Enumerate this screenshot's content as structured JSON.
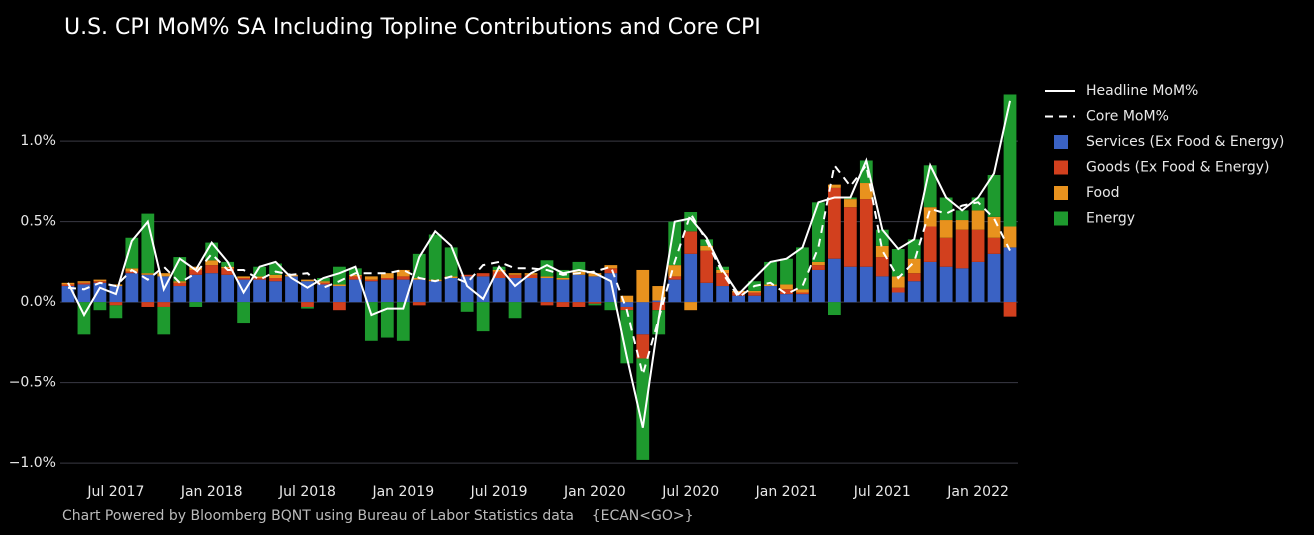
{
  "chart_data": {
    "type": "bar",
    "title": "U.S. CPI MoM% SA Including Topline Contributions and Core CPI",
    "source": "Chart Powered by Bloomberg BQNT using Bureau of Labor Statistics data    {ECAN<GO>}",
    "stacked": true,
    "x": [
      "2017-04",
      "2017-05",
      "2017-06",
      "2017-07",
      "2017-08",
      "2017-09",
      "2017-10",
      "2017-11",
      "2017-12",
      "2018-01",
      "2018-02",
      "2018-03",
      "2018-04",
      "2018-05",
      "2018-06",
      "2018-07",
      "2018-08",
      "2018-09",
      "2018-10",
      "2018-11",
      "2018-12",
      "2019-01",
      "2019-02",
      "2019-03",
      "2019-04",
      "2019-05",
      "2019-06",
      "2019-07",
      "2019-08",
      "2019-09",
      "2019-10",
      "2019-11",
      "2019-12",
      "2020-01",
      "2020-02",
      "2020-03",
      "2020-04",
      "2020-05",
      "2020-06",
      "2020-07",
      "2020-08",
      "2020-09",
      "2020-10",
      "2020-11",
      "2020-12",
      "2021-01",
      "2021-02",
      "2021-03",
      "2021-04",
      "2021-05",
      "2021-06",
      "2021-07",
      "2021-08",
      "2021-09",
      "2021-10",
      "2021-11",
      "2021-12",
      "2022-01",
      "2022-02",
      "2022-03"
    ],
    "xticks": [
      {
        "value": "2017-07",
        "label": "Jul 2017"
      },
      {
        "value": "2018-01",
        "label": "Jan 2018"
      },
      {
        "value": "2018-07",
        "label": "Jul 2018"
      },
      {
        "value": "2019-01",
        "label": "Jan 2019"
      },
      {
        "value": "2019-07",
        "label": "Jul 2019"
      },
      {
        "value": "2020-01",
        "label": "Jan 2020"
      },
      {
        "value": "2020-07",
        "label": "Jul 2020"
      },
      {
        "value": "2021-01",
        "label": "Jan 2021"
      },
      {
        "value": "2021-07",
        "label": "Jul 2021"
      },
      {
        "value": "2022-01",
        "label": "Jan 2022"
      }
    ],
    "ylim": [
      -1.08,
      1.38
    ],
    "yticks": [
      {
        "value": -1,
        "label": "−1.0%"
      },
      {
        "value": -0.5,
        "label": "−0.5%"
      },
      {
        "value": 0,
        "label": "0.0%"
      },
      {
        "value": 0.5,
        "label": "0.5%"
      },
      {
        "value": 1,
        "label": "1.0%"
      }
    ],
    "grid": true,
    "legend": "right",
    "lines": [
      {
        "name": "Headline MoM%",
        "color": "#ffffff",
        "dash": false,
        "values": [
          0.12,
          -0.08,
          0.09,
          0.05,
          0.38,
          0.5,
          0.08,
          0.27,
          0.2,
          0.37,
          0.25,
          0.06,
          0.22,
          0.25,
          0.15,
          0.09,
          0.15,
          0.18,
          0.22,
          -0.08,
          -0.04,
          -0.04,
          0.28,
          0.44,
          0.35,
          0.1,
          0.02,
          0.22,
          0.1,
          0.18,
          0.23,
          0.18,
          0.2,
          0.18,
          0.13,
          -0.34,
          -0.78,
          -0.1,
          0.5,
          0.52,
          0.4,
          0.2,
          0.05,
          0.15,
          0.25,
          0.27,
          0.34,
          0.62,
          0.65,
          0.65,
          0.88,
          0.45,
          0.33,
          0.39,
          0.85,
          0.65,
          0.57,
          0.65,
          0.8,
          1.25
        ]
      },
      {
        "name": "Core MoM%",
        "color": "#ffffff",
        "dash": true,
        "values": [
          0.09,
          0.08,
          0.12,
          0.1,
          0.2,
          0.14,
          0.22,
          0.12,
          0.18,
          0.3,
          0.2,
          0.2,
          0.14,
          0.19,
          0.17,
          0.18,
          0.09,
          0.13,
          0.18,
          0.18,
          0.18,
          0.2,
          0.15,
          0.13,
          0.16,
          0.12,
          0.23,
          0.25,
          0.21,
          0.21,
          0.2,
          0.17,
          0.18,
          0.19,
          0.22,
          -0.05,
          -0.45,
          -0.1,
          0.25,
          0.55,
          0.38,
          0.18,
          0.03,
          0.1,
          0.12,
          0.05,
          0.1,
          0.34,
          0.85,
          0.72,
          0.85,
          0.32,
          0.15,
          0.25,
          0.58,
          0.55,
          0.6,
          0.62,
          0.52,
          0.32
        ]
      }
    ],
    "series": [
      {
        "name": "Services (Ex Food & Energy)",
        "color": "#3a62c4",
        "values": [
          0.1,
          0.11,
          0.12,
          0.1,
          0.18,
          0.17,
          0.16,
          0.1,
          0.17,
          0.18,
          0.17,
          0.14,
          0.14,
          0.13,
          0.16,
          0.13,
          0.11,
          0.1,
          0.14,
          0.13,
          0.14,
          0.14,
          0.14,
          0.13,
          0.15,
          0.16,
          0.16,
          0.15,
          0.15,
          0.15,
          0.15,
          0.14,
          0.17,
          0.16,
          0.18,
          -0.03,
          -0.2,
          0.01,
          0.14,
          0.3,
          0.12,
          0.1,
          0.04,
          0.04,
          0.1,
          0.05,
          0.05,
          0.2,
          0.27,
          0.22,
          0.22,
          0.16,
          0.06,
          0.13,
          0.25,
          0.22,
          0.21,
          0.25,
          0.3,
          0.34
        ]
      },
      {
        "name": "Goods (Ex Food & Energy)",
        "color": "#d2401e",
        "values": [
          0.01,
          0.01,
          0.01,
          -0.02,
          0.01,
          -0.03,
          -0.03,
          0.02,
          0.03,
          0.05,
          0.04,
          0.01,
          0.01,
          0.02,
          0,
          -0.03,
          0.01,
          -0.05,
          0.02,
          0.01,
          0.01,
          0.02,
          -0.02,
          0,
          0,
          0.01,
          0.02,
          0.04,
          0.02,
          0.02,
          -0.02,
          -0.03,
          -0.03,
          -0.01,
          0.03,
          -0.02,
          -0.15,
          -0.05,
          0.02,
          0.14,
          0.2,
          0.08,
          0.02,
          0.02,
          0,
          0.03,
          0.01,
          0.03,
          0.44,
          0.37,
          0.42,
          0.12,
          0.03,
          0.05,
          0.22,
          0.18,
          0.24,
          0.2,
          0.1,
          -0.09
        ]
      },
      {
        "name": "Food",
        "color": "#e8921e",
        "values": [
          0.01,
          0.01,
          0.01,
          0.01,
          0.02,
          0.01,
          0.02,
          0.01,
          0.02,
          0.03,
          0.01,
          0.01,
          0.01,
          0.02,
          0.01,
          0.01,
          0.01,
          0.01,
          0.01,
          0.02,
          0.03,
          0.04,
          0.01,
          0.01,
          0.01,
          0,
          0,
          0.01,
          0.01,
          0.01,
          0.01,
          0.01,
          0.02,
          0.02,
          0.02,
          0.04,
          0.2,
          0.09,
          0.07,
          -0.05,
          0.03,
          0.02,
          0.01,
          0.01,
          0.01,
          0.03,
          0.02,
          0.02,
          0.02,
          0.05,
          0.1,
          0.07,
          0.07,
          0.09,
          0.12,
          0.11,
          0.06,
          0.12,
          0.13,
          0.13
        ]
      },
      {
        "name": "Energy",
        "color": "#1e9a2e",
        "values": [
          0,
          -0.2,
          -0.05,
          -0.08,
          0.19,
          0.37,
          -0.17,
          0.15,
          -0.03,
          0.11,
          0.03,
          -0.13,
          0.06,
          0.07,
          0,
          -0.01,
          0.02,
          0.11,
          0.04,
          -0.24,
          -0.22,
          -0.24,
          0.15,
          0.28,
          0.18,
          -0.06,
          -0.18,
          0.02,
          -0.1,
          0,
          0.1,
          0.05,
          0.06,
          -0.01,
          -0.05,
          -0.33,
          -0.63,
          -0.15,
          0.27,
          0.12,
          0.04,
          0.02,
          0,
          0.06,
          0.14,
          0.16,
          0.26,
          0.37,
          -0.08,
          0.01,
          0.14,
          0.1,
          0.17,
          0.12,
          0.26,
          0.14,
          0.06,
          0.08,
          0.26,
          0.82
        ]
      }
    ]
  }
}
